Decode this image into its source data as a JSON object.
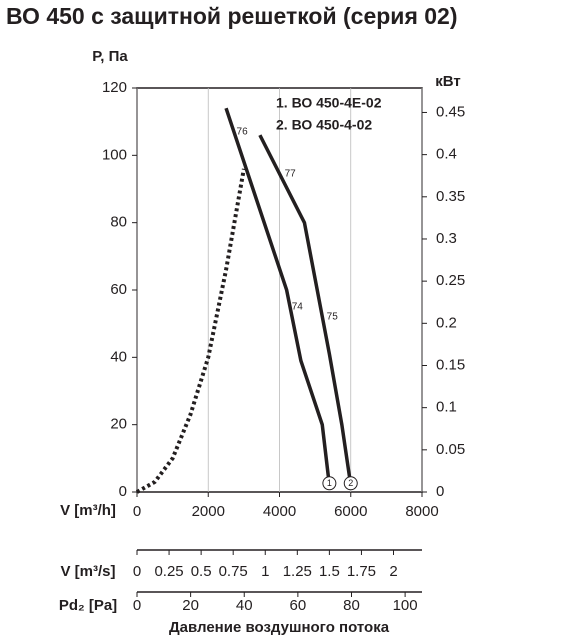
{
  "chart_data": {
    "type": "line",
    "title": "ВО 450 с защитной решеткой (серия 02)",
    "y_label": "P, Па",
    "y2_label": "кВт",
    "x_label": "V [m³/h]",
    "xlim": [
      0,
      8000
    ],
    "xticks": [
      0,
      2000,
      4000,
      6000,
      8000
    ],
    "ylim": [
      0,
      120
    ],
    "yticks": [
      0,
      20,
      40,
      60,
      80,
      100,
      120
    ],
    "y2lim": [
      0,
      0.479
    ],
    "y2ticks": [
      0,
      0.05,
      0.1,
      0.15,
      0.2,
      0.25,
      0.3,
      0.35,
      0.4,
      0.45
    ],
    "grid": true,
    "series": [
      {
        "name": "1. ВО 450-4Е-02",
        "marker_label": "1",
        "color": "#231f20",
        "x": [
          2500,
          4200,
          4600,
          5200,
          5400
        ],
        "values": [
          114,
          60,
          39,
          20,
          2
        ]
      },
      {
        "name": "2. ВО 450-4-02",
        "marker_label": "2",
        "color": "#231f20",
        "x": [
          3450,
          4700,
          5400,
          5750,
          6000
        ],
        "values": [
          106,
          80,
          41,
          20,
          2
        ]
      },
      {
        "dash": "dotted",
        "color": "#231f20",
        "x": [
          0,
          500,
          1000,
          1500,
          2000,
          2500,
          3000
        ],
        "values": [
          0,
          3,
          10,
          23,
          40,
          66,
          96
        ]
      }
    ],
    "annotations": [
      {
        "text": "76",
        "x": 2950,
        "y": 107
      },
      {
        "text": "77",
        "x": 4300,
        "y": 94.5
      },
      {
        "text": "74",
        "x": 4500,
        "y": 55
      },
      {
        "text": "75",
        "x": 5480,
        "y": 52
      }
    ],
    "extra_axes": [
      {
        "label": "V [m³/s]",
        "lim": [
          0,
          2.2222
        ],
        "ticks": [
          0,
          0.25,
          0.5,
          0.75,
          1,
          1.25,
          1.5,
          1.75,
          2
        ]
      },
      {
        "label": "Pd₂ [Pa]",
        "lim": [
          0,
          106.3
        ],
        "ticks": [
          0,
          20,
          40,
          60,
          80,
          100
        ]
      }
    ],
    "footer": "Давление воздушного потока"
  }
}
